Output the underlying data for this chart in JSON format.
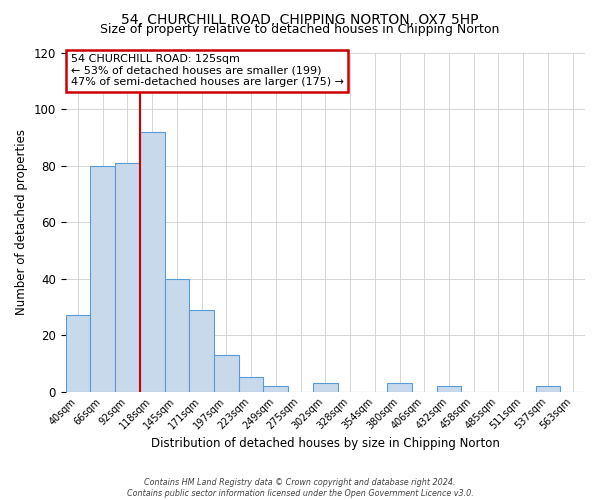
{
  "title": "54, CHURCHILL ROAD, CHIPPING NORTON, OX7 5HP",
  "subtitle": "Size of property relative to detached houses in Chipping Norton",
  "xlabel": "Distribution of detached houses by size in Chipping Norton",
  "ylabel": "Number of detached properties",
  "bin_labels": [
    "40sqm",
    "66sqm",
    "92sqm",
    "118sqm",
    "145sqm",
    "171sqm",
    "197sqm",
    "223sqm",
    "249sqm",
    "275sqm",
    "302sqm",
    "328sqm",
    "354sqm",
    "380sqm",
    "406sqm",
    "432sqm",
    "458sqm",
    "485sqm",
    "511sqm",
    "537sqm",
    "563sqm"
  ],
  "bar_values": [
    27,
    80,
    81,
    92,
    40,
    29,
    13,
    5,
    2,
    0,
    3,
    0,
    0,
    3,
    0,
    2,
    0,
    0,
    0,
    2,
    0
  ],
  "bar_color": "#c9d9ec",
  "bar_edge_color": "#5b9bd5",
  "ylim": [
    0,
    120
  ],
  "yticks": [
    0,
    20,
    40,
    60,
    80,
    100,
    120
  ],
  "property_line_color": "#cc0000",
  "annotation_title": "54 CHURCHILL ROAD: 125sqm",
  "annotation_line1": "← 53% of detached houses are smaller (199)",
  "annotation_line2": "47% of semi-detached houses are larger (175) →",
  "annotation_box_color": "#cc0000",
  "footer_line1": "Contains HM Land Registry data © Crown copyright and database right 2024.",
  "footer_line2": "Contains public sector information licensed under the Open Government Licence v3.0.",
  "title_fontsize": 10,
  "subtitle_fontsize": 9
}
